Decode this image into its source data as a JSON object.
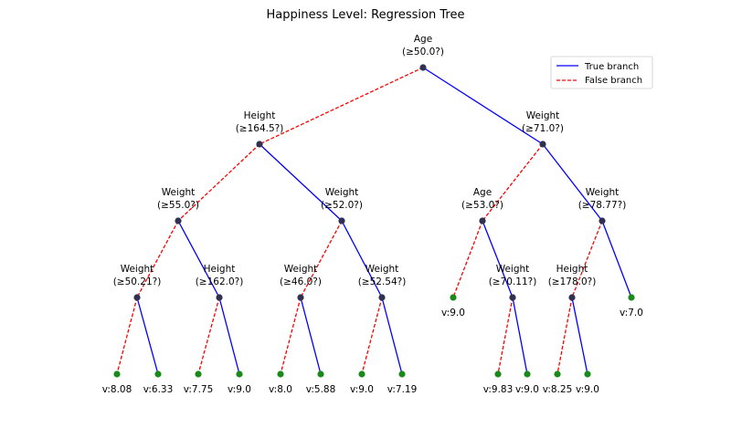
{
  "title": "Happiness Level: Regression Tree",
  "colors": {
    "true_branch": "#0000ff",
    "false_branch": "#ff0000",
    "internal_node": "#303050",
    "leaf_node": "#1a8a1a"
  },
  "legend": {
    "true_label": "True branch",
    "false_label": "False branch",
    "placement": "top-right"
  },
  "nodes": [
    {
      "id": "n0",
      "feature": "Age",
      "condition": "(≥50.0?)"
    },
    {
      "id": "n1",
      "feature": "Height",
      "condition": "(≥164.5?)"
    },
    {
      "id": "n2",
      "feature": "Weight",
      "condition": "(≥71.0?)"
    },
    {
      "id": "n3",
      "feature": "Weight",
      "condition": "(≥55.0?)"
    },
    {
      "id": "n4",
      "feature": "Weight",
      "condition": "(≥52.0?)"
    },
    {
      "id": "n5",
      "feature": "Age",
      "condition": "(≥53.0?)"
    },
    {
      "id": "n6",
      "feature": "Weight",
      "condition": "(≥78.77?)"
    },
    {
      "id": "n7",
      "feature": "Weight",
      "condition": "(≥50.21?)"
    },
    {
      "id": "n8",
      "feature": "Height",
      "condition": "(≥162.0?)"
    },
    {
      "id": "n9",
      "feature": "Weight",
      "condition": "(≥46.0?)"
    },
    {
      "id": "n10",
      "feature": "Weight",
      "condition": "(≥52.54?)"
    },
    {
      "id": "n11",
      "feature": "Weight",
      "condition": "(≥70.11?)"
    },
    {
      "id": "n12",
      "feature": "Height",
      "condition": "(≥178.0?)"
    }
  ],
  "leaves": [
    {
      "id": "l0",
      "label": "v:9.0"
    },
    {
      "id": "l1",
      "label": "v:7.0"
    },
    {
      "id": "l2",
      "label": "v:8.08"
    },
    {
      "id": "l3",
      "label": "v:6.33"
    },
    {
      "id": "l4",
      "label": "v:7.75"
    },
    {
      "id": "l5",
      "label": "v:9.0"
    },
    {
      "id": "l6",
      "label": "v:8.0"
    },
    {
      "id": "l7",
      "label": "v:5.88"
    },
    {
      "id": "l8",
      "label": "v:9.0"
    },
    {
      "id": "l9",
      "label": "v:7.19"
    },
    {
      "id": "l10",
      "label": "v:9.83"
    },
    {
      "id": "l11",
      "label": "v:9.0"
    },
    {
      "id": "l12",
      "label": "v:8.25"
    },
    {
      "id": "l13",
      "label": "v:9.0"
    }
  ],
  "edges": [
    {
      "from": "n0",
      "to": "n1",
      "branch": "false"
    },
    {
      "from": "n0",
      "to": "n2",
      "branch": "true"
    },
    {
      "from": "n1",
      "to": "n3",
      "branch": "false"
    },
    {
      "from": "n1",
      "to": "n4",
      "branch": "true"
    },
    {
      "from": "n2",
      "to": "n5",
      "branch": "false"
    },
    {
      "from": "n2",
      "to": "n6",
      "branch": "true"
    },
    {
      "from": "n3",
      "to": "n7",
      "branch": "false"
    },
    {
      "from": "n3",
      "to": "n8",
      "branch": "true"
    },
    {
      "from": "n4",
      "to": "n9",
      "branch": "false"
    },
    {
      "from": "n4",
      "to": "n10",
      "branch": "true"
    },
    {
      "from": "n5",
      "to": "l0",
      "branch": "false"
    },
    {
      "from": "n5",
      "to": "n11",
      "branch": "true"
    },
    {
      "from": "n6",
      "to": "n12",
      "branch": "false"
    },
    {
      "from": "n6",
      "to": "l1",
      "branch": "true"
    },
    {
      "from": "n7",
      "to": "l2",
      "branch": "false"
    },
    {
      "from": "n7",
      "to": "l3",
      "branch": "true"
    },
    {
      "from": "n8",
      "to": "l4",
      "branch": "false"
    },
    {
      "from": "n8",
      "to": "l5",
      "branch": "true"
    },
    {
      "from": "n9",
      "to": "l6",
      "branch": "false"
    },
    {
      "from": "n9",
      "to": "l7",
      "branch": "true"
    },
    {
      "from": "n10",
      "to": "l8",
      "branch": "false"
    },
    {
      "from": "n10",
      "to": "l9",
      "branch": "true"
    },
    {
      "from": "n11",
      "to": "l10",
      "branch": "false"
    },
    {
      "from": "n11",
      "to": "l11",
      "branch": "true"
    },
    {
      "from": "n12",
      "to": "l12",
      "branch": "false"
    },
    {
      "from": "n12",
      "to": "l13",
      "branch": "true"
    }
  ]
}
